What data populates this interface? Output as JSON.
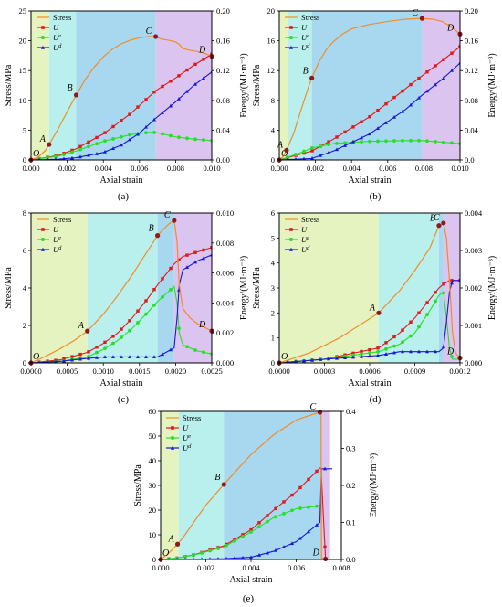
{
  "chart_data": [
    {
      "type": "line",
      "panel_label": "(a)",
      "xlabel": "Axial strain",
      "ylabel_left": "Stress/MPa",
      "ylabel_right": "Energy/(MJ·m⁻³)",
      "xlim": [
        0,
        0.01
      ],
      "ylim_left": [
        0,
        25
      ],
      "ylim_right": [
        0,
        0.2
      ],
      "xticks": [
        "0.000",
        "0.002",
        "0.004",
        "0.006",
        "0.008",
        "0.010"
      ],
      "yticks_left": [
        "0",
        "5",
        "10",
        "15",
        "20",
        "25"
      ],
      "yticks_right": [
        "0.00",
        "0.04",
        "0.08",
        "0.12",
        "0.16",
        "0.20"
      ],
      "legend": [
        "Stress",
        "U",
        "Ue",
        "Ud"
      ],
      "regions": [
        [
          0,
          0.001,
          "#e5f3c0"
        ],
        [
          0.001,
          0.0025,
          "#b9f0ee"
        ],
        [
          0.0025,
          0.0069,
          "#a8d8ef"
        ],
        [
          0.0069,
          0.01,
          "#dbc4f0"
        ]
      ],
      "points": [
        {
          "label": "O",
          "x": 0.0,
          "y": 0.0
        },
        {
          "label": "A",
          "x": 0.001,
          "y": 2.6
        },
        {
          "label": "B",
          "x": 0.0025,
          "y": 10.9
        },
        {
          "label": "C",
          "x": 0.0069,
          "y": 20.7
        },
        {
          "label": "D",
          "x": 0.01,
          "y": 17.4
        }
      ],
      "stress": {
        "x": [
          0,
          0.0004,
          0.0008,
          0.001,
          0.0015,
          0.002,
          0.0025,
          0.003,
          0.0035,
          0.004,
          0.0045,
          0.005,
          0.0055,
          0.006,
          0.0065,
          0.0069,
          0.0072,
          0.0076,
          0.008,
          0.0082,
          0.0084,
          0.0088,
          0.0092,
          0.0096,
          0.01
        ],
        "y": [
          0,
          0.5,
          1.6,
          2.6,
          5.2,
          8.1,
          10.9,
          13.5,
          15.6,
          17.3,
          18.6,
          19.5,
          20.1,
          20.5,
          20.7,
          20.7,
          20.3,
          20.1,
          19.8,
          19.4,
          18.7,
          18.4,
          18.2,
          17.9,
          17.4
        ]
      },
      "series_right": [
        {
          "name": "U",
          "color": "#e01818",
          "marker": "square",
          "x": [
            0,
            0.0015,
            0.0025,
            0.004,
            0.0055,
            0.0069,
            0.008,
            0.009,
            0.01
          ],
          "y": [
            0,
            0.006,
            0.015,
            0.035,
            0.062,
            0.093,
            0.11,
            0.127,
            0.142
          ]
        },
        {
          "name": "Ue",
          "color": "#26e026",
          "marker": "circle",
          "x": [
            0,
            0.0015,
            0.0025,
            0.004,
            0.0055,
            0.0065,
            0.0069,
            0.008,
            0.009,
            0.01
          ],
          "y": [
            0,
            0.005,
            0.012,
            0.025,
            0.034,
            0.037,
            0.037,
            0.031,
            0.028,
            0.026
          ]
        },
        {
          "name": "Ud",
          "color": "#1818d8",
          "marker": "triangle",
          "x": [
            0,
            0.0015,
            0.0025,
            0.004,
            0.005,
            0.006,
            0.0069,
            0.008,
            0.009,
            0.01
          ],
          "y": [
            0,
            0.001,
            0.003,
            0.01,
            0.02,
            0.036,
            0.056,
            0.078,
            0.1,
            0.118
          ]
        }
      ]
    },
    {
      "type": "line",
      "panel_label": "(b)",
      "xlabel": "Axial strain",
      "ylabel_left": "Stress/MPa",
      "ylabel_right": "Energy/(MJ·m⁻³)",
      "xlim": [
        0,
        0.01
      ],
      "ylim_left": [
        0,
        20
      ],
      "ylim_right": [
        0,
        0.2
      ],
      "xticks": [
        "0.000",
        "0.002",
        "0.004",
        "0.006",
        "0.008",
        "0.010"
      ],
      "yticks_left": [
        "0",
        "4",
        "8",
        "12",
        "16",
        "20"
      ],
      "yticks_right": [
        "0.0",
        "0.04",
        "0.08",
        "0.12",
        "0.16",
        "0.20"
      ],
      "legend": [
        "Stress",
        "U",
        "Ue",
        "Ud"
      ],
      "regions": [
        [
          0,
          0.0005,
          "#e5f3c0"
        ],
        [
          0.0005,
          0.0018,
          "#b9f0ee"
        ],
        [
          0.0018,
          0.0079,
          "#a8d8ef"
        ],
        [
          0.0079,
          0.01,
          "#dbc4f0"
        ]
      ],
      "points": [
        {
          "label": "O",
          "x": 0.0,
          "y": 0.0
        },
        {
          "label": "A",
          "x": 0.0004,
          "y": 1.3
        },
        {
          "label": "B",
          "x": 0.0018,
          "y": 11.0
        },
        {
          "label": "C",
          "x": 0.0079,
          "y": 19.0
        },
        {
          "label": "D",
          "x": 0.01,
          "y": 16.9
        }
      ],
      "stress": {
        "x": [
          0,
          0.0002,
          0.0004,
          0.0008,
          0.0012,
          0.0016,
          0.0018,
          0.0022,
          0.0026,
          0.003,
          0.0035,
          0.004,
          0.005,
          0.006,
          0.007,
          0.0079,
          0.0085,
          0.009,
          0.0095,
          0.01
        ],
        "y": [
          0,
          0.4,
          1.3,
          3.6,
          6.7,
          9.7,
          11.0,
          13.2,
          14.8,
          15.9,
          16.9,
          17.6,
          18.2,
          18.6,
          18.9,
          19.0,
          18.9,
          18.6,
          17.9,
          16.9
        ]
      },
      "series_right": [
        {
          "name": "U",
          "color": "#e01818",
          "marker": "square",
          "x": [
            0,
            0.0018,
            0.003,
            0.005,
            0.007,
            0.0079,
            0.009,
            0.01
          ],
          "y": [
            0,
            0.012,
            0.028,
            0.058,
            0.096,
            0.113,
            0.133,
            0.152
          ]
        },
        {
          "name": "Ue",
          "color": "#26e026",
          "marker": "circle",
          "x": [
            0,
            0.001,
            0.0018,
            0.003,
            0.005,
            0.007,
            0.0079,
            0.009,
            0.01
          ],
          "y": [
            0,
            0.008,
            0.016,
            0.022,
            0.025,
            0.026,
            0.026,
            0.024,
            0.022
          ]
        },
        {
          "name": "Ud",
          "color": "#1818d8",
          "marker": "triangle",
          "x": [
            0,
            0.0018,
            0.003,
            0.005,
            0.007,
            0.0079,
            0.009,
            0.01
          ],
          "y": [
            0,
            0.002,
            0.012,
            0.035,
            0.068,
            0.087,
            0.108,
            0.13
          ]
        }
      ]
    },
    {
      "type": "line",
      "panel_label": "(c)",
      "xlabel": "Axial strain",
      "ylabel_left": "Stress/MPa",
      "ylabel_right": "Energy/(MJ·m⁻³)",
      "xlim": [
        0,
        0.0025
      ],
      "ylim_left": [
        0,
        8
      ],
      "ylim_right": [
        0,
        0.01
      ],
      "xticks": [
        "0.0000",
        "0.0005",
        "0.0010",
        "0.0015",
        "0.0020",
        "0.0025"
      ],
      "yticks_left": [
        "0",
        "2",
        "4",
        "6",
        "8"
      ],
      "yticks_right": [
        "0.000",
        "0.002",
        "0.004",
        "0.006",
        "0.008",
        "0.010"
      ],
      "legend": [
        "Stress",
        "U",
        "Ue",
        "Ud"
      ],
      "regions": [
        [
          0,
          0.00078,
          "#e5f3c0"
        ],
        [
          0.00078,
          0.00175,
          "#b9f0ee"
        ],
        [
          0.00175,
          0.00198,
          "#a8d8ef"
        ],
        [
          0.00198,
          0.0025,
          "#dbc4f0"
        ]
      ],
      "points": [
        {
          "label": "O",
          "x": 0.0,
          "y": 0.0
        },
        {
          "label": "A",
          "x": 0.00078,
          "y": 1.7
        },
        {
          "label": "B",
          "x": 0.00175,
          "y": 6.8
        },
        {
          "label": "C",
          "x": 0.00198,
          "y": 7.6
        },
        {
          "label": "D",
          "x": 0.0025,
          "y": 1.7
        }
      ],
      "stress": {
        "x": [
          0,
          0.0002,
          0.0004,
          0.0006,
          0.00078,
          0.001,
          0.0012,
          0.0014,
          0.0016,
          0.00175,
          0.0019,
          0.00198,
          0.00202,
          0.00205,
          0.0021,
          0.0022,
          0.0023,
          0.0024,
          0.0025
        ],
        "y": [
          0,
          0.35,
          0.75,
          1.2,
          1.7,
          2.6,
          3.6,
          4.7,
          5.9,
          6.8,
          7.4,
          7.6,
          6.5,
          4.2,
          2.9,
          2.4,
          2.1,
          1.9,
          1.7
        ]
      },
      "series_right": [
        {
          "name": "U",
          "color": "#e01818",
          "marker": "square",
          "x": [
            0,
            0.0004,
            0.00078,
            0.001,
            0.0012,
            0.0014,
            0.0016,
            0.00175,
            0.00198,
            0.0021,
            0.0023,
            0.0025
          ],
          "y": [
            0,
            0.0002,
            0.0007,
            0.0013,
            0.002,
            0.003,
            0.0042,
            0.0052,
            0.0066,
            0.0071,
            0.0074,
            0.0077
          ]
        },
        {
          "name": "Ue",
          "color": "#26e026",
          "marker": "circle",
          "x": [
            0,
            0.0004,
            0.00078,
            0.001,
            0.0012,
            0.0014,
            0.0016,
            0.00175,
            0.00198,
            0.00202,
            0.00205,
            0.0021,
            0.0023,
            0.0025
          ],
          "y": [
            0,
            0.0001,
            0.0004,
            0.0009,
            0.0015,
            0.0023,
            0.0033,
            0.0041,
            0.0051,
            0.004,
            0.002,
            0.0012,
            0.0008,
            0.0006
          ]
        },
        {
          "name": "Ud",
          "color": "#1818d8",
          "marker": "triangle",
          "x": [
            0,
            0.0004,
            0.00078,
            0.001,
            0.0014,
            0.00175,
            0.00198,
            0.00202,
            0.00205,
            0.0021,
            0.0023,
            0.0025
          ],
          "y": [
            0,
            0.0001,
            0.0003,
            0.0004,
            0.0004,
            0.0004,
            0.001,
            0.003,
            0.0052,
            0.0062,
            0.0068,
            0.0072
          ]
        }
      ]
    },
    {
      "type": "line",
      "panel_label": "(d)",
      "xlabel": "Axial strain",
      "ylabel_left": "Stress/MPa",
      "ylabel_right": "Energy/(MJ·m⁻³)",
      "xlim": [
        0,
        0.0012
      ],
      "ylim_left": [
        0,
        6
      ],
      "ylim_right": [
        0,
        0.004
      ],
      "xticks": [
        "0.0000",
        "0.0003",
        "0.0006",
        "0.0009",
        "0.0012"
      ],
      "yticks_left": [
        "0",
        "1",
        "2",
        "3",
        "4",
        "5",
        "6"
      ],
      "yticks_right": [
        "0.000",
        "0.001",
        "0.002",
        "0.003",
        "0.004"
      ],
      "legend": [
        "Stress",
        "U",
        "Ue",
        "Ud"
      ],
      "regions": [
        [
          0,
          0.00066,
          "#e5f3c0"
        ],
        [
          0.00066,
          0.00106,
          "#b9f0ee"
        ],
        [
          0.00106,
          0.00109,
          "#a8d8ef"
        ],
        [
          0.00109,
          0.0012,
          "#dbc4f0"
        ]
      ],
      "points": [
        {
          "label": "O",
          "x": 0.0,
          "y": 0.0
        },
        {
          "label": "A",
          "x": 0.00066,
          "y": 2.0
        },
        {
          "label": "B",
          "x": 0.00106,
          "y": 5.5
        },
        {
          "label": "C",
          "x": 0.00109,
          "y": 5.6
        },
        {
          "label": "D",
          "x": 0.0012,
          "y": 0.2
        }
      ],
      "stress": {
        "x": [
          0,
          0.0002,
          0.0004,
          0.00066,
          0.0008,
          0.0009,
          0.001,
          0.00106,
          0.00109,
          0.00111,
          0.00113,
          0.00115,
          0.00117,
          0.0012
        ],
        "y": [
          0,
          0.4,
          1.0,
          2.0,
          2.9,
          3.7,
          4.6,
          5.5,
          5.6,
          5.0,
          3.3,
          1.2,
          0.4,
          0.2
        ]
      },
      "series_right": [
        {
          "name": "U",
          "color": "#e01818",
          "marker": "square",
          "x": [
            0,
            0.0003,
            0.00066,
            0.0008,
            0.0009,
            0.001,
            0.00106,
            0.00109,
            0.00113,
            0.0012
          ],
          "y": [
            0,
            0.0001,
            0.0004,
            0.0008,
            0.0012,
            0.0017,
            0.002,
            0.0021,
            0.0022,
            0.0022
          ]
        },
        {
          "name": "Ue",
          "color": "#26e026",
          "marker": "circle",
          "x": [
            0,
            0.0003,
            0.00066,
            0.0008,
            0.0009,
            0.001,
            0.00106,
            0.00109,
            0.00111,
            0.00113,
            0.00115,
            0.0012
          ],
          "y": [
            0,
            0.0001,
            0.0003,
            0.0005,
            0.0008,
            0.0014,
            0.0018,
            0.0019,
            0.0012,
            0.0004,
            0.0001,
            0.0001
          ]
        },
        {
          "name": "Ud",
          "color": "#1818d8",
          "marker": "triangle",
          "x": [
            0,
            0.0003,
            0.00066,
            0.0008,
            0.0009,
            0.001,
            0.00106,
            0.00109,
            0.00111,
            0.00113,
            0.00115,
            0.0012
          ],
          "y": [
            0,
            0.0001,
            0.0002,
            0.0003,
            0.0003,
            0.0003,
            0.0003,
            0.0004,
            0.0011,
            0.0019,
            0.0022,
            0.0022
          ]
        }
      ]
    },
    {
      "type": "line",
      "panel_label": "(e)",
      "xlabel": "Axial strain",
      "ylabel_left": "Stress/MPa",
      "ylabel_right": "Energy/(MJ·m⁻³)",
      "xlim": [
        0,
        0.008
      ],
      "ylim_left": [
        0,
        60
      ],
      "ylim_right": [
        0,
        0.4
      ],
      "xticks": [
        "0.000",
        "0.002",
        "0.004",
        "0.006",
        "0.008"
      ],
      "yticks_left": [
        "0",
        "10",
        "20",
        "30",
        "40",
        "50",
        "60"
      ],
      "yticks_right": [
        "0.0",
        "0.1",
        "0.2",
        "0.3",
        "0.4"
      ],
      "legend": [
        "Stress",
        "U",
        "Ue",
        "Ud"
      ],
      "regions": [
        [
          0,
          0.0008,
          "#e5f3c0"
        ],
        [
          0.0008,
          0.0028,
          "#b9f0ee"
        ],
        [
          0.0028,
          0.0071,
          "#a8d8ef"
        ],
        [
          0.0071,
          0.0075,
          "#dbc4f0"
        ]
      ],
      "points": [
        {
          "label": "O",
          "x": 0.0,
          "y": 0.0
        },
        {
          "label": "A",
          "x": 0.00075,
          "y": 6.2
        },
        {
          "label": "B",
          "x": 0.0028,
          "y": 30.4
        },
        {
          "label": "C",
          "x": 0.00705,
          "y": 59.6
        },
        {
          "label": "D",
          "x": 0.0073,
          "y": 0.2
        }
      ],
      "stress": {
        "x": [
          0,
          0.0003,
          0.00075,
          0.001,
          0.0015,
          0.002,
          0.0028,
          0.0035,
          0.004,
          0.005,
          0.006,
          0.0068,
          0.00705,
          0.0071,
          0.00712,
          0.0073
        ],
        "y": [
          0,
          2.0,
          6.2,
          9.0,
          15.5,
          22.0,
          30.4,
          37.5,
          42.5,
          50.5,
          56.5,
          59.0,
          59.6,
          59.6,
          0.5,
          0.2
        ]
      },
      "series_right": [
        {
          "name": "U",
          "color": "#e01818",
          "marker": "square",
          "x": [
            0,
            0.00075,
            0.0015,
            0.0028,
            0.004,
            0.005,
            0.006,
            0.00705,
            0.0071,
            0.0073
          ],
          "y": [
            0,
            0.004,
            0.013,
            0.037,
            0.08,
            0.133,
            0.183,
            0.247,
            0.247,
            0.0
          ]
        },
        {
          "name": "Ue",
          "color": "#26e026",
          "marker": "circle",
          "x": [
            0,
            0.00075,
            0.0015,
            0.0028,
            0.004,
            0.005,
            0.006,
            0.00705,
            0.0071
          ],
          "y": [
            0,
            0.004,
            0.012,
            0.034,
            0.074,
            0.113,
            0.137,
            0.145,
            0.145
          ]
        },
        {
          "name": "Ud",
          "color": "#1818d8",
          "marker": "triangle",
          "x": [
            0,
            0.002,
            0.0028,
            0.004,
            0.005,
            0.006,
            0.00705,
            0.00712,
            0.0076
          ],
          "y": [
            0,
            0.001,
            0.002,
            0.006,
            0.022,
            0.048,
            0.1,
            0.245,
            0.245
          ]
        }
      ]
    }
  ],
  "colors": {
    "stress": "#f28c28",
    "U": "#e01818",
    "Ue": "#26e026",
    "Ud": "#1818d8",
    "point_marker": "#8b1a1a"
  }
}
